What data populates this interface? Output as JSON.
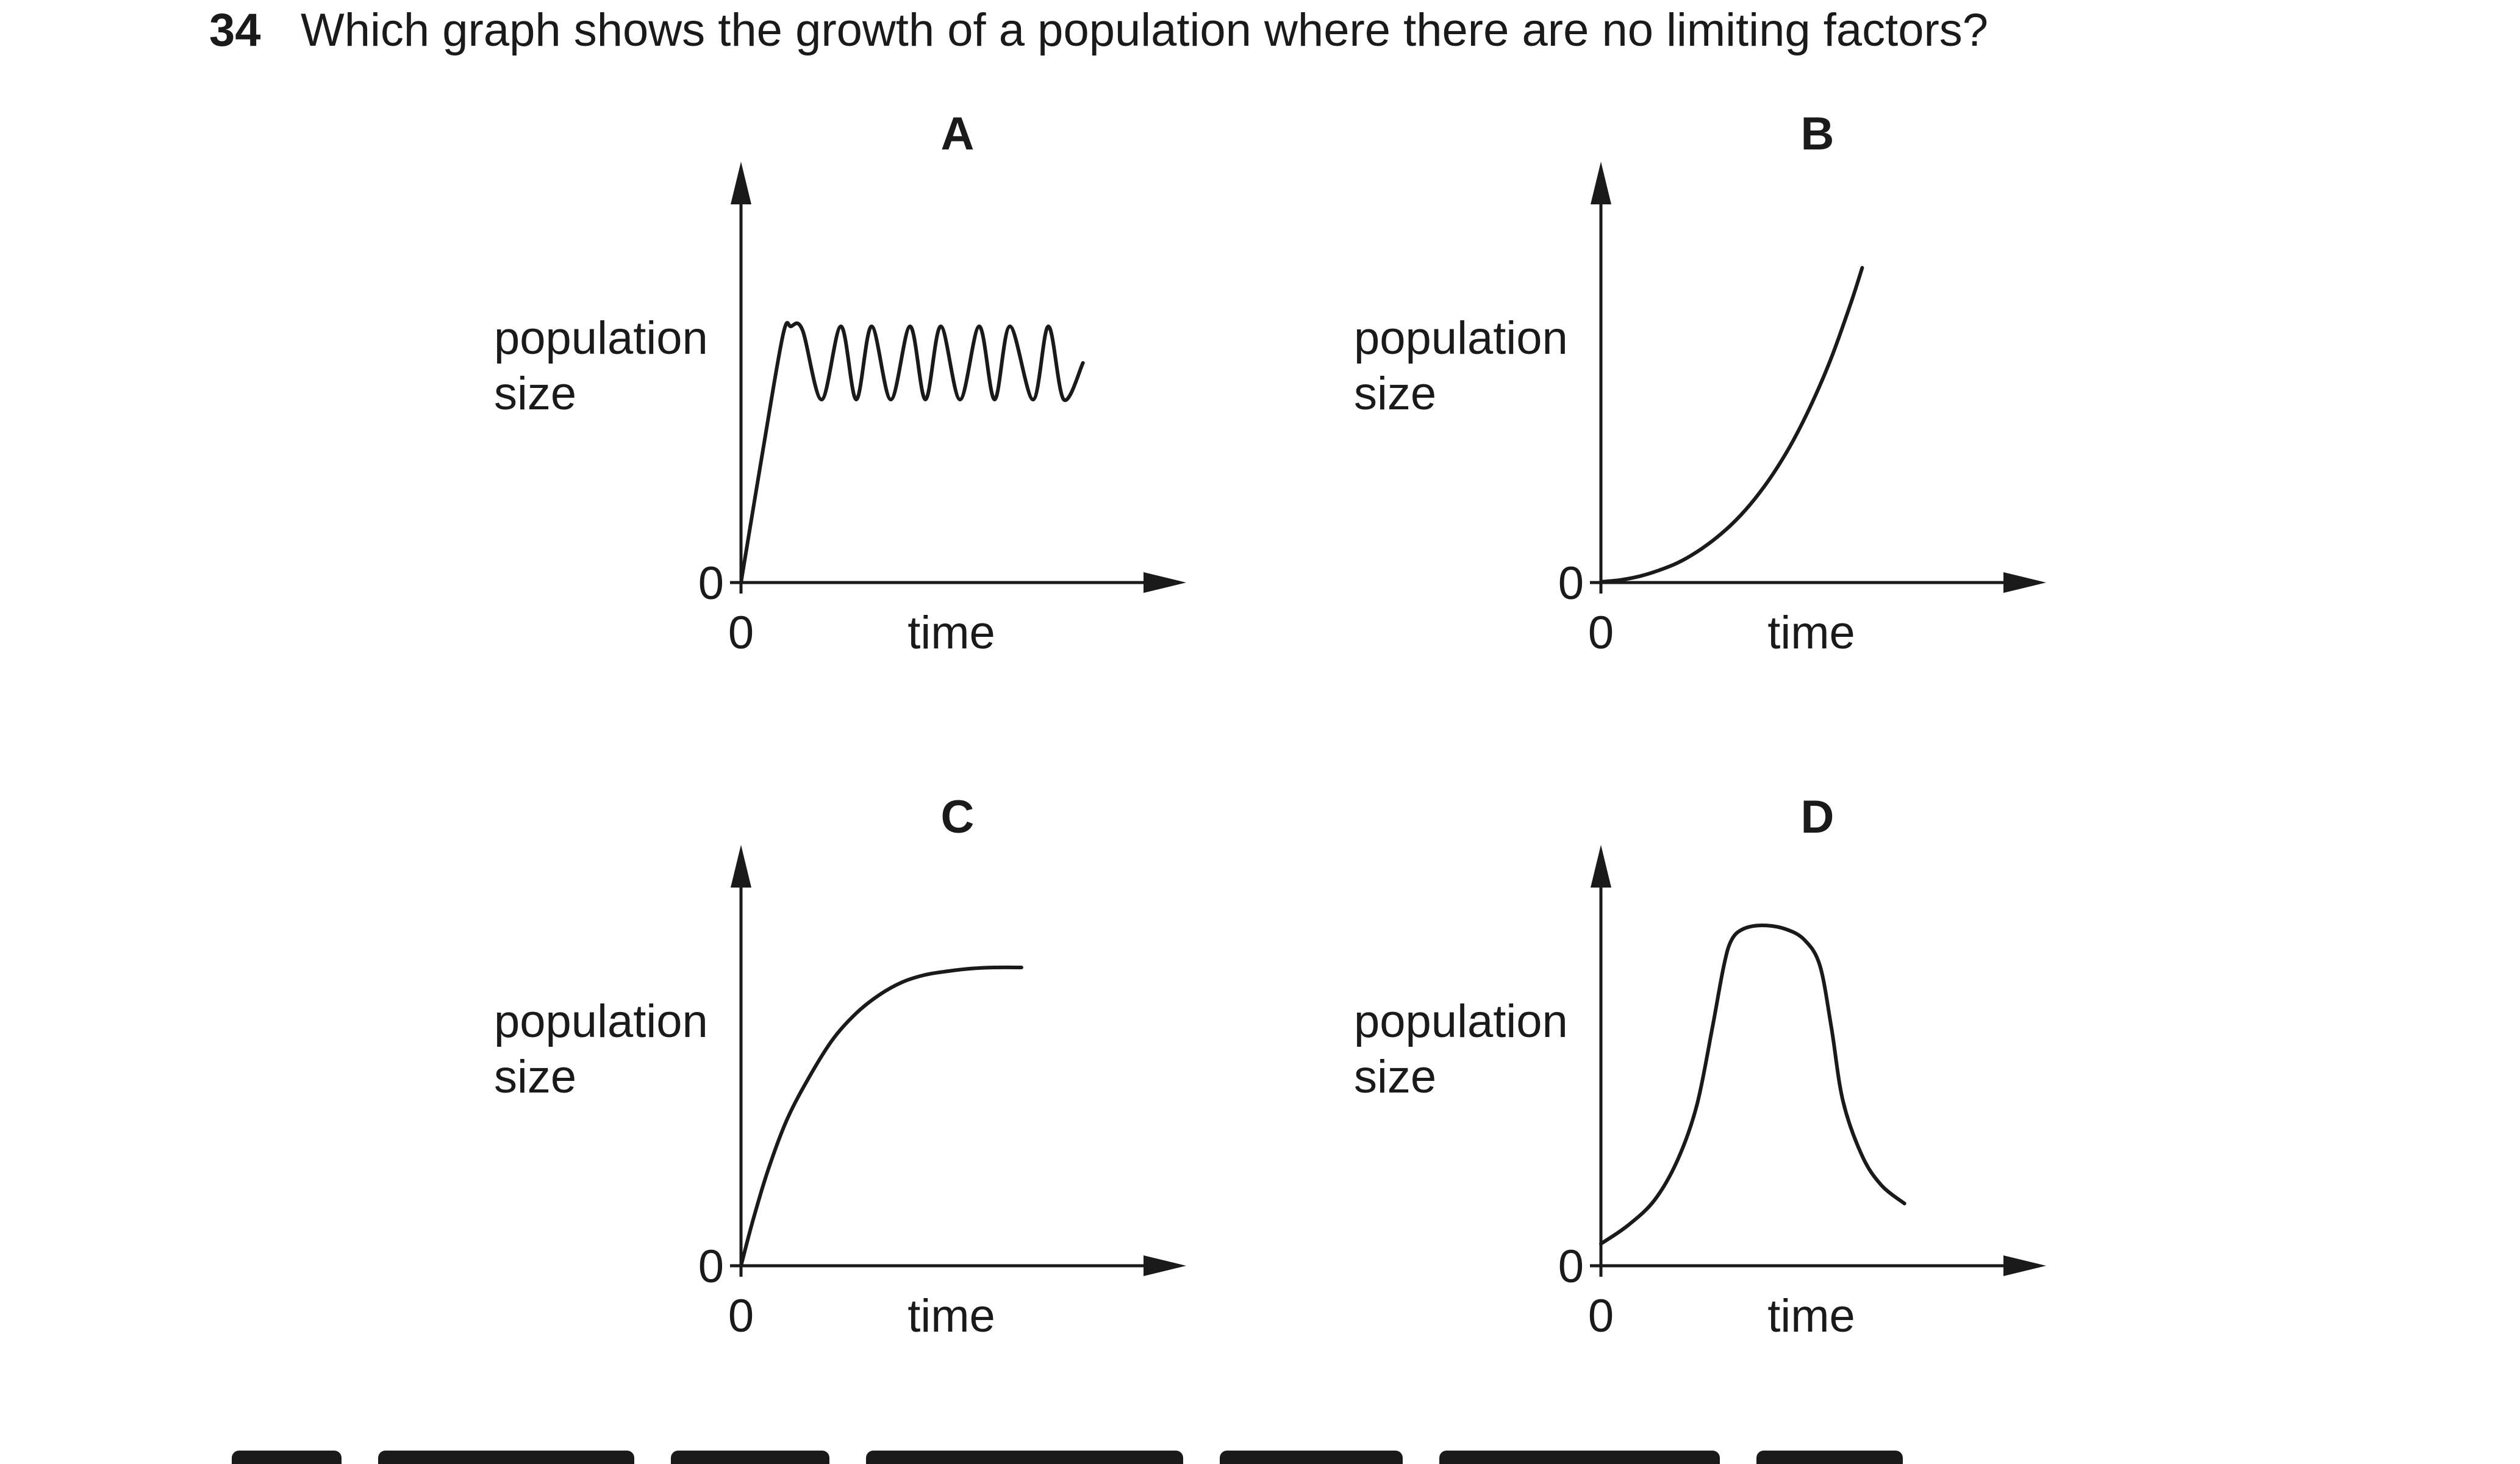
{
  "question": {
    "number": "34",
    "text": "Which graph shows the growth of a population where there are no limiting factors?"
  },
  "chart_data": [
    {
      "type": "line",
      "letter": "A",
      "ylabel": [
        "population",
        "size"
      ],
      "xlabel": "time",
      "x_tick": "0",
      "y_tick": "0",
      "shape": "rapid rise then oscillation about a constant level",
      "xlim": [
        0,
        10
      ],
      "ylim": [
        0,
        10
      ],
      "x": [
        0,
        0.6,
        1.1,
        1.3,
        1.6,
        2.1,
        2.6,
        3.0,
        3.4,
        3.9,
        4.4,
        4.8,
        5.2,
        5.7,
        6.2,
        6.6,
        7.0,
        7.6,
        8.0,
        8.4,
        8.9
      ],
      "y": [
        0,
        3.8,
        6.8,
        7.0,
        6.9,
        5.0,
        7.0,
        5.0,
        7.0,
        5.0,
        7.0,
        5.0,
        7.0,
        5.0,
        7.0,
        5.0,
        7.0,
        5.0,
        7.0,
        5.0,
        6.0
      ]
    },
    {
      "type": "line",
      "letter": "B",
      "ylabel": [
        "population",
        "size"
      ],
      "xlabel": "time",
      "x_tick": "0",
      "y_tick": "0",
      "shape": "exponential (J-shaped) growth",
      "xlim": [
        0,
        10
      ],
      "ylim": [
        0,
        10
      ],
      "x": [
        0,
        0.5,
        1.0,
        1.5,
        2.0,
        2.5,
        3.0,
        3.5,
        4.0,
        4.5,
        5.0,
        5.5,
        6.0,
        6.5,
        6.8
      ],
      "y": [
        0.02,
        0.07,
        0.17,
        0.33,
        0.54,
        0.84,
        1.22,
        1.69,
        2.28,
        3.0,
        3.87,
        4.92,
        6.15,
        7.62,
        8.6
      ]
    },
    {
      "type": "line",
      "letter": "C",
      "ylabel": [
        "population",
        "size"
      ],
      "xlabel": "time",
      "x_tick": "0",
      "y_tick": "0",
      "shape": "rise levelling off to a plateau",
      "xlim": [
        0,
        10
      ],
      "ylim": [
        0,
        10
      ],
      "x": [
        0,
        0.3,
        0.7,
        1.2,
        1.8,
        2.4,
        3.0,
        3.6,
        4.2,
        4.8,
        5.4,
        6.0,
        6.6,
        7.3
      ],
      "y": [
        0,
        1.2,
        2.6,
        4.0,
        5.2,
        6.2,
        6.9,
        7.4,
        7.75,
        7.95,
        8.05,
        8.12,
        8.15,
        8.15
      ]
    },
    {
      "type": "line",
      "letter": "D",
      "ylabel": [
        "population",
        "size"
      ],
      "xlabel": "time",
      "x_tick": "0",
      "y_tick": "0",
      "shape": "rise to a peak then crash",
      "xlim": [
        0,
        10
      ],
      "ylim": [
        0,
        10
      ],
      "x": [
        0,
        0.7,
        1.4,
        2.0,
        2.5,
        2.9,
        3.2,
        3.4,
        3.7,
        4.2,
        4.8,
        5.3,
        5.7,
        6.0,
        6.3,
        6.8,
        7.3,
        7.9
      ],
      "y": [
        0.6,
        1.1,
        1.8,
        2.9,
        4.4,
        6.5,
        8.2,
        8.9,
        9.2,
        9.3,
        9.2,
        8.9,
        8.2,
        6.5,
        4.5,
        3.0,
        2.2,
        1.7
      ]
    }
  ]
}
